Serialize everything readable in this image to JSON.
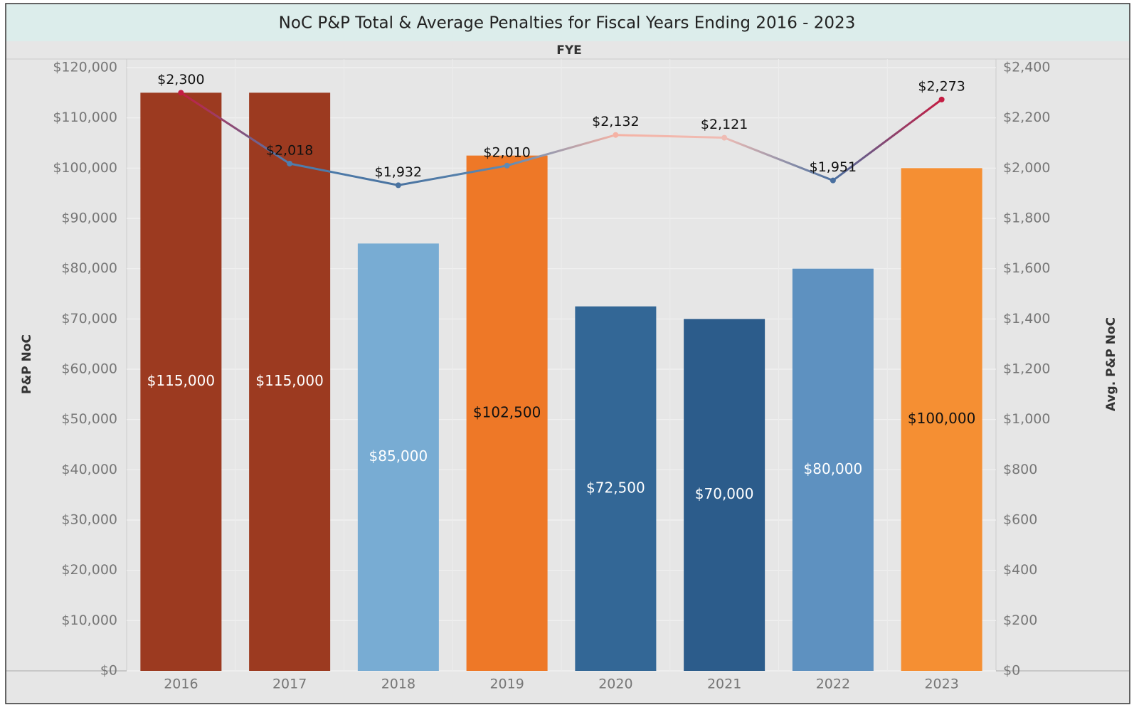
{
  "chart_data": {
    "type": "bar",
    "title": "NoC P&P Total & Average Penalties for Fiscal Years Ending 2016 - 2023",
    "x_header": "FYE",
    "y_label": "P&P NoC",
    "y2_label": "Avg. P&P NoC",
    "categories": [
      "2016",
      "2017",
      "2018",
      "2019",
      "2020",
      "2021",
      "2022",
      "2023"
    ],
    "series": [
      {
        "name": "P&P NoC",
        "type": "bar",
        "colors": [
          "#9c3a20",
          "#9c3a20",
          "#78acd3",
          "#ee7827",
          "#336796",
          "#2c5c8b",
          "#5e91c0",
          "#f58f33"
        ],
        "values": [
          115000,
          115000,
          85000,
          102500,
          72500,
          70000,
          80000,
          100000
        ],
        "value_labels": [
          "$115,000",
          "$115,000",
          "$85,000",
          "$102,500",
          "$72,500",
          "$70,000",
          "$80,000",
          "$100,000"
        ]
      },
      {
        "name": "Avg. P&P NoC",
        "type": "line",
        "axis": "y2",
        "colors": [
          "#c41c42",
          "#4e7eae",
          "#4a73a0",
          "#5d8ab4",
          "#f5b2a4",
          "#efbcb4",
          "#4a70a0",
          "#c41c42"
        ],
        "values": [
          2300,
          2018,
          1932,
          2010,
          2132,
          2121,
          1951,
          2273
        ],
        "value_labels": [
          "$2,300",
          "$2,018",
          "$1,932",
          "$2,010",
          "$2,132",
          "$2,121",
          "$1,951",
          "$2,273"
        ]
      }
    ],
    "ylim": [
      0,
      120000
    ],
    "yticks": [
      {
        "value": 0,
        "label": "$0"
      },
      {
        "value": 10000,
        "label": "$10,000"
      },
      {
        "value": 20000,
        "label": "$20,000"
      },
      {
        "value": 30000,
        "label": "$30,000"
      },
      {
        "value": 40000,
        "label": "$40,000"
      },
      {
        "value": 50000,
        "label": "$50,000"
      },
      {
        "value": 60000,
        "label": "$60,000"
      },
      {
        "value": 70000,
        "label": "$70,000"
      },
      {
        "value": 80000,
        "label": "$80,000"
      },
      {
        "value": 90000,
        "label": "$90,000"
      },
      {
        "value": 100000,
        "label": "$100,000"
      },
      {
        "value": 110000,
        "label": "$110,000"
      },
      {
        "value": 120000,
        "label": "$120,000"
      }
    ],
    "y2lim": [
      0,
      2400
    ],
    "y2ticks": [
      {
        "value": 0,
        "label": "$0"
      },
      {
        "value": 200,
        "label": "$200"
      },
      {
        "value": 400,
        "label": "$400"
      },
      {
        "value": 600,
        "label": "$600"
      },
      {
        "value": 800,
        "label": "$800"
      },
      {
        "value": 1000,
        "label": "$1,000"
      },
      {
        "value": 1200,
        "label": "$1,200"
      },
      {
        "value": 1400,
        "label": "$1,400"
      },
      {
        "value": 1600,
        "label": "$1,600"
      },
      {
        "value": 1800,
        "label": "$1,800"
      },
      {
        "value": 2000,
        "label": "$2,000"
      },
      {
        "value": 2200,
        "label": "$2,200"
      },
      {
        "value": 2400,
        "label": "$2,400"
      }
    ],
    "grid": true
  }
}
